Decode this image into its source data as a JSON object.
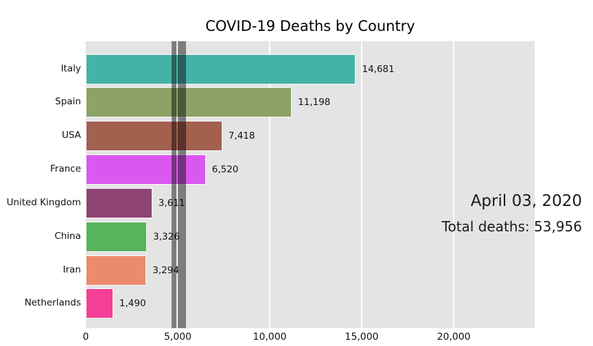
{
  "chart_data": {
    "type": "bar",
    "orientation": "horizontal",
    "title": "COVID-19 Deaths by Country",
    "categories": [
      "Italy",
      "Spain",
      "USA",
      "France",
      "United Kingdom",
      "China",
      "Iran",
      "Netherlands"
    ],
    "values": [
      14681,
      11198,
      7418,
      6520,
      3611,
      3326,
      3294,
      1490
    ],
    "value_labels": [
      "14,681",
      "11,198",
      "7,418",
      "6,520",
      "3,611",
      "3,326",
      "3,294",
      "1,490"
    ],
    "bar_colors": [
      "#45b2a7",
      "#8ca266",
      "#a3604f",
      "#d959f0",
      "#8e4573",
      "#57b55c",
      "#ec8b6c",
      "#f43f96"
    ],
    "xlabel": "",
    "ylabel": "",
    "xlim": [
      0,
      24400
    ],
    "x_ticks": [
      0,
      5000,
      10000,
      15000,
      20000
    ],
    "x_tick_labels": [
      "0",
      "5,000",
      "10,000",
      "15,000",
      "20,000"
    ],
    "grid": true,
    "legend": false,
    "plot_bg_color": "#e4e4e4",
    "highlight_bands": [
      {
        "x0": 4660,
        "x1": 4920
      },
      {
        "x0": 5010,
        "x1": 5430
      }
    ],
    "annotations": {
      "date": "April 03, 2020",
      "total": "Total deaths: 53,956"
    }
  }
}
